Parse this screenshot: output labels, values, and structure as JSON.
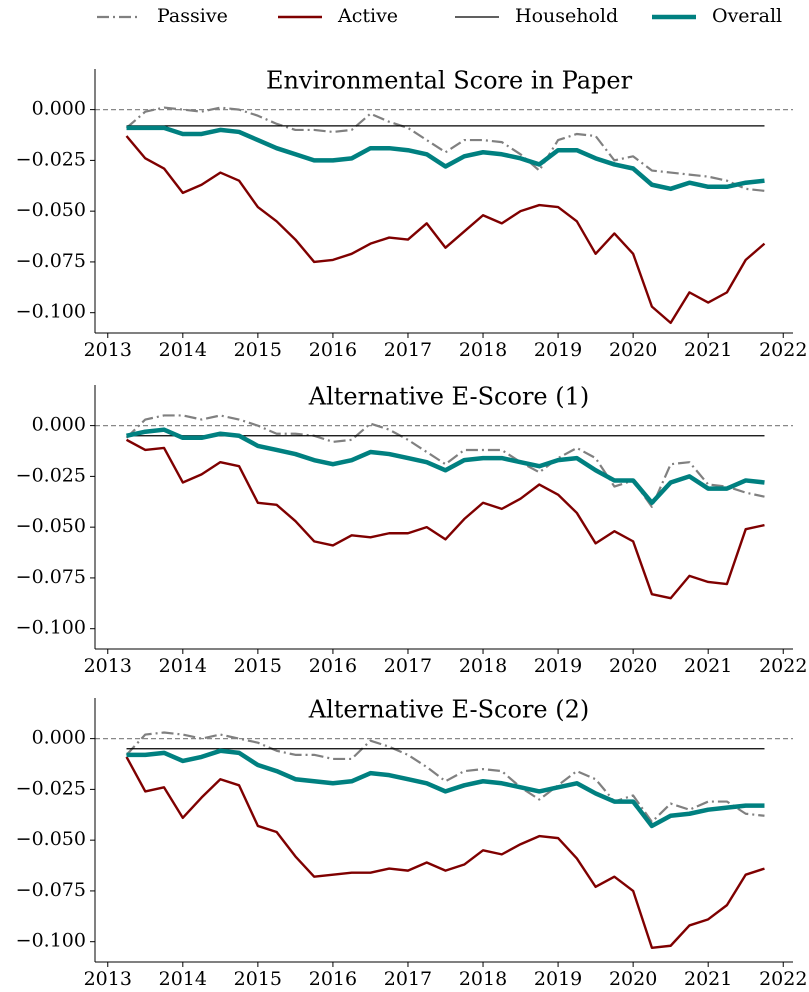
{
  "chart_data": [
    {
      "type": "line",
      "title": "Environmental Score in Paper",
      "legend": "top",
      "x": [
        2013.25,
        2013.5,
        2013.75,
        2014,
        2014.25,
        2014.5,
        2014.75,
        2015,
        2015.25,
        2015.5,
        2015.75,
        2016,
        2016.25,
        2016.5,
        2016.75,
        2017,
        2017.25,
        2017.5,
        2017.75,
        2018,
        2018.25,
        2018.5,
        2018.75,
        2019,
        2019.25,
        2019.5,
        2019.75,
        2020,
        2020.25,
        2020.5,
        2020.75,
        2021,
        2021.25,
        2021.5,
        2021.75
      ],
      "series": [
        {
          "name": "Passive",
          "color": "#808080",
          "style": "dashdot",
          "width": 2.2,
          "values": [
            -0.009,
            -0.001,
            0.001,
            0.0,
            -0.001,
            0.001,
            0.0,
            -0.003,
            -0.007,
            -0.01,
            -0.01,
            -0.011,
            -0.01,
            -0.002,
            -0.006,
            -0.009,
            -0.015,
            -0.021,
            -0.015,
            -0.015,
            -0.016,
            -0.022,
            -0.03,
            -0.015,
            -0.012,
            -0.013,
            -0.025,
            -0.023,
            -0.03,
            -0.031,
            -0.032,
            -0.033,
            -0.035,
            -0.039,
            -0.04
          ]
        },
        {
          "name": "Active",
          "color": "#7f0000",
          "style": "solid",
          "width": 2.4,
          "values": [
            -0.013,
            -0.024,
            -0.029,
            -0.041,
            -0.037,
            -0.031,
            -0.035,
            -0.048,
            -0.055,
            -0.064,
            -0.075,
            -0.074,
            -0.071,
            -0.066,
            -0.063,
            -0.064,
            -0.056,
            -0.068,
            -0.06,
            -0.052,
            -0.056,
            -0.05,
            -0.047,
            -0.048,
            -0.055,
            -0.071,
            -0.061,
            -0.071,
            -0.097,
            -0.105,
            -0.09,
            -0.095,
            -0.09,
            -0.074,
            -0.066
          ]
        },
        {
          "name": "Household",
          "color": "#000000",
          "style": "solid",
          "width": 1.2,
          "values": [
            -0.008,
            -0.008,
            -0.008,
            -0.008,
            -0.008,
            -0.008,
            -0.008,
            -0.008,
            -0.008,
            -0.008,
            -0.008,
            -0.008,
            -0.008,
            -0.008,
            -0.008,
            -0.008,
            -0.008,
            -0.008,
            -0.008,
            -0.008,
            -0.008,
            -0.008,
            -0.008,
            -0.008,
            -0.008,
            -0.008,
            -0.008,
            -0.008,
            -0.008,
            -0.008,
            -0.008,
            -0.008,
            -0.008,
            -0.008,
            -0.008
          ]
        },
        {
          "name": "Overall",
          "color": "#008080",
          "style": "solid",
          "width": 4.5,
          "values": [
            -0.009,
            -0.009,
            -0.009,
            -0.012,
            -0.012,
            -0.01,
            -0.011,
            -0.015,
            -0.019,
            -0.022,
            -0.025,
            -0.025,
            -0.024,
            -0.019,
            -0.019,
            -0.02,
            -0.022,
            -0.028,
            -0.023,
            -0.021,
            -0.022,
            -0.024,
            -0.027,
            -0.02,
            -0.02,
            -0.024,
            -0.027,
            -0.029,
            -0.037,
            -0.039,
            -0.036,
            -0.038,
            -0.038,
            -0.036,
            -0.035
          ]
        }
      ],
      "xlim": [
        2012.83,
        2022.13
      ],
      "xticks": [
        2013,
        2014,
        2015,
        2016,
        2017,
        2018,
        2019,
        2020,
        2021,
        2022
      ],
      "ylim": [
        -0.11,
        0.02
      ],
      "yticks": [
        {
          "value": 0,
          "label": "0.000"
        },
        {
          "value": -0.025,
          "label": "−0.025"
        },
        {
          "value": -0.05,
          "label": "−0.050"
        },
        {
          "value": -0.075,
          "label": "−0.075"
        },
        {
          "value": -0.1,
          "label": "−0.100"
        }
      ],
      "hline": 0
    },
    {
      "type": "line",
      "title": "Alternative E-Score (1)",
      "x": [
        2013.25,
        2013.5,
        2013.75,
        2014,
        2014.25,
        2014.5,
        2014.75,
        2015,
        2015.25,
        2015.5,
        2015.75,
        2016,
        2016.25,
        2016.5,
        2016.75,
        2017,
        2017.25,
        2017.5,
        2017.75,
        2018,
        2018.25,
        2018.5,
        2018.75,
        2019,
        2019.25,
        2019.5,
        2019.75,
        2020,
        2020.25,
        2020.5,
        2020.75,
        2021,
        2021.25,
        2021.5,
        2021.75
      ],
      "series": [
        {
          "name": "Passive",
          "color": "#808080",
          "style": "dashdot",
          "width": 2.2,
          "values": [
            -0.006,
            0.003,
            0.005,
            0.005,
            0.003,
            0.005,
            0.003,
            0.0,
            -0.004,
            -0.004,
            -0.005,
            -0.008,
            -0.007,
            0.001,
            -0.002,
            -0.007,
            -0.013,
            -0.019,
            -0.012,
            -0.012,
            -0.012,
            -0.018,
            -0.023,
            -0.016,
            -0.011,
            -0.016,
            -0.03,
            -0.027,
            -0.04,
            -0.019,
            -0.018,
            -0.029,
            -0.03,
            -0.033,
            -0.035
          ]
        },
        {
          "name": "Active",
          "color": "#7f0000",
          "style": "solid",
          "width": 2.4,
          "values": [
            -0.007,
            -0.012,
            -0.011,
            -0.028,
            -0.024,
            -0.018,
            -0.02,
            -0.038,
            -0.039,
            -0.047,
            -0.057,
            -0.059,
            -0.054,
            -0.055,
            -0.053,
            -0.053,
            -0.05,
            -0.056,
            -0.046,
            -0.038,
            -0.041,
            -0.036,
            -0.029,
            -0.034,
            -0.043,
            -0.058,
            -0.052,
            -0.057,
            -0.083,
            -0.085,
            -0.074,
            -0.077,
            -0.078,
            -0.051,
            -0.049
          ]
        },
        {
          "name": "Household",
          "color": "#000000",
          "style": "solid",
          "width": 1.2,
          "values": [
            -0.005,
            -0.005,
            -0.005,
            -0.005,
            -0.005,
            -0.005,
            -0.005,
            -0.005,
            -0.005,
            -0.005,
            -0.005,
            -0.005,
            -0.005,
            -0.005,
            -0.005,
            -0.005,
            -0.005,
            -0.005,
            -0.005,
            -0.005,
            -0.005,
            -0.005,
            -0.005,
            -0.005,
            -0.005,
            -0.005,
            -0.005,
            -0.005,
            -0.005,
            -0.005,
            -0.005,
            -0.005,
            -0.005,
            -0.005,
            -0.005
          ]
        },
        {
          "name": "Overall",
          "color": "#008080",
          "style": "solid",
          "width": 4.5,
          "values": [
            -0.005,
            -0.003,
            -0.002,
            -0.006,
            -0.006,
            -0.004,
            -0.005,
            -0.01,
            -0.012,
            -0.014,
            -0.017,
            -0.019,
            -0.017,
            -0.013,
            -0.014,
            -0.016,
            -0.018,
            -0.022,
            -0.017,
            -0.016,
            -0.016,
            -0.018,
            -0.02,
            -0.017,
            -0.016,
            -0.022,
            -0.027,
            -0.027,
            -0.038,
            -0.028,
            -0.025,
            -0.031,
            -0.031,
            -0.027,
            -0.028
          ]
        }
      ],
      "xlim": [
        2012.83,
        2022.13
      ],
      "xticks": [
        2013,
        2014,
        2015,
        2016,
        2017,
        2018,
        2019,
        2020,
        2021,
        2022
      ],
      "ylim": [
        -0.11,
        0.02
      ],
      "yticks": [
        {
          "value": 0,
          "label": "0.000"
        },
        {
          "value": -0.025,
          "label": "−0.025"
        },
        {
          "value": -0.05,
          "label": "−0.050"
        },
        {
          "value": -0.075,
          "label": "−0.075"
        },
        {
          "value": -0.1,
          "label": "−0.100"
        }
      ],
      "hline": 0
    },
    {
      "type": "line",
      "title": "Alternative E-Score (2)",
      "x": [
        2013.25,
        2013.5,
        2013.75,
        2014,
        2014.25,
        2014.5,
        2014.75,
        2015,
        2015.25,
        2015.5,
        2015.75,
        2016,
        2016.25,
        2016.5,
        2016.75,
        2017,
        2017.25,
        2017.5,
        2017.75,
        2018,
        2018.25,
        2018.5,
        2018.75,
        2019,
        2019.25,
        2019.5,
        2019.75,
        2020,
        2020.25,
        2020.5,
        2020.75,
        2021,
        2021.25,
        2021.5,
        2021.75
      ],
      "series": [
        {
          "name": "Passive",
          "color": "#808080",
          "style": "dashdot",
          "width": 2.2,
          "values": [
            -0.008,
            0.002,
            0.003,
            0.002,
            0.0,
            0.002,
            0.0,
            -0.002,
            -0.006,
            -0.008,
            -0.008,
            -0.01,
            -0.01,
            -0.001,
            -0.004,
            -0.008,
            -0.014,
            -0.021,
            -0.016,
            -0.015,
            -0.016,
            -0.024,
            -0.03,
            -0.023,
            -0.016,
            -0.02,
            -0.031,
            -0.028,
            -0.041,
            -0.032,
            -0.035,
            -0.031,
            -0.031,
            -0.037,
            -0.038
          ]
        },
        {
          "name": "Active",
          "color": "#7f0000",
          "style": "solid",
          "width": 2.4,
          "values": [
            -0.009,
            -0.026,
            -0.024,
            -0.039,
            -0.029,
            -0.02,
            -0.023,
            -0.043,
            -0.046,
            -0.058,
            -0.068,
            -0.067,
            -0.066,
            -0.066,
            -0.064,
            -0.065,
            -0.061,
            -0.065,
            -0.062,
            -0.055,
            -0.057,
            -0.052,
            -0.048,
            -0.049,
            -0.059,
            -0.073,
            -0.068,
            -0.075,
            -0.103,
            -0.102,
            -0.092,
            -0.089,
            -0.082,
            -0.067,
            -0.064
          ]
        },
        {
          "name": "Household",
          "color": "#000000",
          "style": "solid",
          "width": 1.2,
          "values": [
            -0.005,
            -0.005,
            -0.005,
            -0.005,
            -0.005,
            -0.005,
            -0.005,
            -0.005,
            -0.005,
            -0.005,
            -0.005,
            -0.005,
            -0.005,
            -0.005,
            -0.005,
            -0.005,
            -0.005,
            -0.005,
            -0.005,
            -0.005,
            -0.005,
            -0.005,
            -0.005,
            -0.005,
            -0.005,
            -0.005,
            -0.005,
            -0.005,
            -0.005,
            -0.005,
            -0.005,
            -0.005,
            -0.005,
            -0.005,
            -0.005
          ]
        },
        {
          "name": "Overall",
          "color": "#008080",
          "style": "solid",
          "width": 4.5,
          "values": [
            -0.008,
            -0.008,
            -0.007,
            -0.011,
            -0.009,
            -0.006,
            -0.007,
            -0.013,
            -0.016,
            -0.02,
            -0.021,
            -0.022,
            -0.021,
            -0.017,
            -0.018,
            -0.02,
            -0.022,
            -0.026,
            -0.023,
            -0.021,
            -0.022,
            -0.024,
            -0.026,
            -0.024,
            -0.022,
            -0.027,
            -0.031,
            -0.031,
            -0.043,
            -0.038,
            -0.037,
            -0.035,
            -0.034,
            -0.033,
            -0.033
          ]
        }
      ],
      "xlim": [
        2012.83,
        2022.13
      ],
      "xticks": [
        2013,
        2014,
        2015,
        2016,
        2017,
        2018,
        2019,
        2020,
        2021,
        2022
      ],
      "ylim": [
        -0.11,
        0.02
      ],
      "yticks": [
        {
          "value": 0,
          "label": "0.000"
        },
        {
          "value": -0.025,
          "label": "−0.025"
        },
        {
          "value": -0.05,
          "label": "−0.050"
        },
        {
          "value": -0.075,
          "label": "−0.075"
        },
        {
          "value": -0.1,
          "label": "−0.100"
        }
      ],
      "hline": 0
    }
  ]
}
